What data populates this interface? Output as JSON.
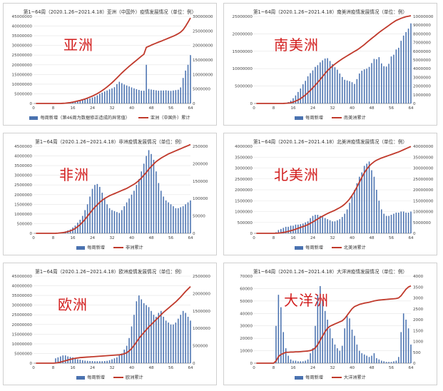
{
  "panels": [
    {
      "id": "asia",
      "name": "亚洲",
      "title": "第1~64周（2020.1.26~2021.4.18）亚洲（中国外）疫情发展情况（单位：例）",
      "legend_bar": "每周新增（第46周为数据修正造成的异常值）",
      "legend_line": "亚洲（中国外）累计"
    },
    {
      "id": "samerica",
      "name": "南美洲",
      "title": "第1~64周（2020.1.26~2021.4.18）南美洲疫情发展情况（单位：例）",
      "legend_bar": "每周新增",
      "legend_line": "南美洲累计"
    },
    {
      "id": "africa",
      "name": "非洲",
      "title": "第1~64周（2020.1.26~2021.4.18）非洲疫情发展情况（单位：例）",
      "legend_bar": "每周新增",
      "legend_line": "非洲累计"
    },
    {
      "id": "namerica",
      "name": "北美洲",
      "title": "第1~64周（2020.1.26~2021.4.18）北美洲疫情发展情况（单位：例）",
      "legend_bar": "每周新增",
      "legend_line": "北美洲累计"
    },
    {
      "id": "europe",
      "name": "欧洲",
      "title": "第1~64周（2020.1.26~2021.4.18）欧洲疫情发展情况（单位：例）",
      "legend_bar": "每周新增",
      "legend_line": "欧洲累计"
    },
    {
      "id": "oceania",
      "name": "大洋洲",
      "title": "第1~64周（2020.1.26~2021.4.18）大洋洲疫情发展情况（单位：例）",
      "legend_bar": "每周新增",
      "legend_line": "大洋洲累计"
    }
  ],
  "colors": {
    "bar": "#4a72b0",
    "line": "#c0392b"
  },
  "chart_data": [
    {
      "type": "bar",
      "id": "asia",
      "x_ticks": [
        0,
        8,
        16,
        24,
        32,
        40,
        48,
        56,
        64
      ],
      "y_left_ticks": [
        0,
        5000000,
        10000000,
        15000000,
        20000000,
        25000000,
        30000000,
        35000000,
        40000000,
        45000000
      ],
      "y_left_lim": [
        0,
        45000000
      ],
      "y_right_ticks": [
        "0",
        "5000000",
        "10000000",
        "15000000",
        "20000000",
        "25000000",
        "30000000"
      ],
      "y_right_lim": [
        0,
        30000000
      ],
      "bars": [
        0,
        0,
        0,
        0,
        0,
        0,
        0,
        0,
        50000,
        100000,
        200000,
        300000,
        400000,
        500000,
        700000,
        900000,
        1000000,
        1200000,
        1500000,
        1800000,
        2100000,
        2400000,
        2700000,
        3100000,
        3500000,
        4200000,
        5000000,
        5600000,
        6200000,
        6700000,
        7300000,
        7800000,
        8400000,
        10000000,
        11200000,
        10500000,
        9800000,
        9300000,
        8800000,
        8300000,
        7800000,
        7400000,
        7000000,
        6600000,
        6600000,
        20000000,
        7500000,
        7200000,
        7000000,
        6800000,
        6600000,
        6700000,
        6700000,
        6800000,
        6600000,
        6500000,
        6700000,
        6900000,
        7100000,
        8300000,
        13200000,
        17000000,
        20000000,
        25000000
      ],
      "line": [
        0,
        0,
        0,
        0,
        0,
        0,
        0,
        0,
        0,
        0,
        0,
        50000,
        100000,
        200000,
        300000,
        450000,
        650000,
        850000,
        1050000,
        1300000,
        1550000,
        1850000,
        2200000,
        2550000,
        2950000,
        3400000,
        3900000,
        4450000,
        5050000,
        5700000,
        6400000,
        7150000,
        7950000,
        8800000,
        9650000,
        10500000,
        11300000,
        12050000,
        12800000,
        13500000,
        14200000,
        14900000,
        15600000,
        16300000,
        16950000,
        19350000,
        19700000,
        20100000,
        20450000,
        20800000,
        21150000,
        21450000,
        21800000,
        22150000,
        22500000,
        22850000,
        23200000,
        23600000,
        24050000,
        24600000,
        25400000,
        26600000,
        28000000,
        29500000
      ]
    },
    {
      "type": "bar",
      "id": "samerica",
      "x_ticks": [
        0,
        8,
        16,
        24,
        32,
        40,
        48,
        56,
        64
      ],
      "y_left_ticks": [
        0,
        5000000,
        10000000,
        15000000,
        20000000,
        25000000
      ],
      "y_left_lim": [
        0,
        25000000
      ],
      "y_right_ticks": [
        "0",
        "1000000",
        "2000000",
        "3000000",
        "4000000",
        "5000000",
        "6000000",
        "7000000",
        "8000000",
        "9000000",
        "10000000"
      ],
      "y_right_lim": [
        0,
        10000000
      ],
      "bars": [
        0,
        0,
        0,
        0,
        0,
        0,
        0,
        0,
        0,
        0,
        0,
        100000,
        200000,
        400000,
        800000,
        1500000,
        2300000,
        3300000,
        4300000,
        5500000,
        6500000,
        7800000,
        8700000,
        9500000,
        10500000,
        11000000,
        11800000,
        12400000,
        12900000,
        13000000,
        12200000,
        11300000,
        10400000,
        9700000,
        8600000,
        7600000,
        6800000,
        6600000,
        6400000,
        6100000,
        5600000,
        7000000,
        8600000,
        9400000,
        9800000,
        10000000,
        10500000,
        11600000,
        12800000,
        12700000,
        13300000,
        11500000,
        10700000,
        10600000,
        11400000,
        13500000,
        14000000,
        15500000,
        16000000,
        18000000,
        19500000,
        20500000,
        21500000,
        23000000
      ],
      "line": [
        0,
        0,
        0,
        0,
        0,
        0,
        0,
        0,
        0,
        0,
        0,
        5000,
        20000,
        40000,
        80000,
        160000,
        270000,
        400000,
        560000,
        760000,
        980000,
        1240000,
        1500000,
        1800000,
        2100000,
        2420000,
        2750000,
        3100000,
        3450000,
        3770000,
        4040000,
        4290000,
        4520000,
        4730000,
        4930000,
        5120000,
        5300000,
        5470000,
        5640000,
        5810000,
        5980000,
        6140000,
        6330000,
        6540000,
        6760000,
        7000000,
        7240000,
        7470000,
        7690000,
        7920000,
        8150000,
        8360000,
        8560000,
        8760000,
        8960000,
        9170000,
        9360000,
        9540000,
        9660000,
        9780000,
        9880000,
        9970000,
        10020000,
        10080000
      ]
    },
    {
      "type": "bar",
      "id": "africa",
      "x_ticks": [
        0,
        8,
        16,
        24,
        32,
        40,
        48,
        56,
        64
      ],
      "y_left_ticks": [
        0,
        500000,
        1000000,
        1500000,
        2000000,
        2500000,
        3000000,
        3500000,
        4000000,
        4500000
      ],
      "y_left_lim": [
        0,
        4500000
      ],
      "y_right_ticks": [
        "0",
        "50000",
        "100000",
        "150000",
        "200000",
        "250000"
      ],
      "y_right_lim": [
        0,
        250000
      ],
      "bars": [
        0,
        0,
        0,
        0,
        0,
        0,
        0,
        0,
        5000,
        20000,
        40000,
        60000,
        100000,
        150000,
        200000,
        300000,
        400000,
        550000,
        700000,
        900000,
        1200000,
        1500000,
        1900000,
        2300000,
        2500000,
        2550000,
        2400000,
        2100000,
        1800000,
        1500000,
        1300000,
        1200000,
        1150000,
        1100000,
        1050000,
        1200000,
        1400000,
        1600000,
        1800000,
        2000000,
        2200000,
        2500000,
        2800000,
        3200000,
        3600000,
        4000000,
        4300000,
        4100000,
        3800000,
        3200000,
        2600000,
        2200000,
        1900000,
        1700000,
        1600000,
        1500000,
        1400000,
        1300000,
        1300000,
        1350000,
        1400000,
        1500000,
        1600000,
        1700000
      ],
      "line": [
        0,
        0,
        0,
        0,
        0,
        0,
        0,
        0,
        100,
        500,
        1200,
        2000,
        3000,
        5000,
        7000,
        10000,
        14000,
        19000,
        25000,
        32000,
        40000,
        49000,
        58000,
        67000,
        75000,
        82000,
        89000,
        95000,
        100000,
        104000,
        108000,
        111000,
        114000,
        117000,
        120000,
        123000,
        126000,
        129000,
        133000,
        137000,
        141000,
        146000,
        152000,
        159000,
        167000,
        175000,
        184000,
        192000,
        199000,
        206000,
        211000,
        216000,
        220000,
        224000,
        228000,
        231000,
        234000,
        237000,
        240000,
        243000,
        246000,
        249000,
        252000,
        255000
      ]
    },
    {
      "type": "bar",
      "id": "namerica",
      "x_ticks": [
        0,
        8,
        16,
        24,
        32,
        40,
        48,
        56,
        64
      ],
      "y_left_ticks": [
        0,
        500000,
        1000000,
        1500000,
        2000000,
        2500000,
        3000000,
        3500000,
        4000000
      ],
      "y_left_lim": [
        0,
        4000000
      ],
      "y_right_ticks": [
        "0",
        "5000000",
        "10000000",
        "15000000",
        "20000000",
        "25000000",
        "30000000",
        "35000000",
        "40000000"
      ],
      "y_right_lim": [
        0,
        40000000
      ],
      "bars": [
        0,
        0,
        0,
        0,
        0,
        0,
        0,
        0,
        50000,
        150000,
        200000,
        250000,
        300000,
        300000,
        350000,
        350000,
        400000,
        400000,
        420000,
        450000,
        500000,
        550000,
        700000,
        800000,
        850000,
        850000,
        800000,
        750000,
        700000,
        650000,
        600000,
        550000,
        550000,
        600000,
        650000,
        750000,
        900000,
        1100000,
        1400000,
        1700000,
        2000000,
        2300000,
        2600000,
        2800000,
        3100000,
        3200000,
        3300000,
        2900000,
        2600000,
        2000000,
        1500000,
        1100000,
        900000,
        800000,
        800000,
        850000,
        900000,
        950000,
        950000,
        1000000,
        1000000,
        950000,
        950000,
        1000000
      ],
      "line": [
        0,
        0,
        0,
        0,
        0,
        0,
        0,
        0,
        50000,
        100000,
        200000,
        400000,
        600000,
        900000,
        1200000,
        1500000,
        1900000,
        2300000,
        2700000,
        3100000,
        3500000,
        4000000,
        4600000,
        5200000,
        5900000,
        6600000,
        7300000,
        7900000,
        8500000,
        9100000,
        9600000,
        10100000,
        10600000,
        11200000,
        11800000,
        12500000,
        13400000,
        14500000,
        15800000,
        17400000,
        19200000,
        21300000,
        23500000,
        25700000,
        27800000,
        29500000,
        30900000,
        32000000,
        32900000,
        33600000,
        34100000,
        34600000,
        35000000,
        35400000,
        35800000,
        36200000,
        36600000,
        37000000,
        37400000,
        37900000,
        38400000,
        38900000,
        39400000,
        39900000
      ]
    },
    {
      "type": "bar",
      "id": "europe",
      "x_ticks": [
        0,
        8,
        16,
        24,
        32,
        40,
        48,
        56,
        64
      ],
      "y_left_ticks": [
        0,
        5000000,
        10000000,
        15000000,
        20000000,
        25000000,
        30000000,
        35000000,
        40000000,
        45000000
      ],
      "y_left_lim": [
        0,
        45000000
      ],
      "y_right_ticks": [
        "0",
        "500000",
        "1000000",
        "1500000",
        "2000000",
        "2500000"
      ],
      "y_right_lim": [
        0,
        2500000
      ],
      "bars": [
        0,
        0,
        0,
        0,
        0,
        0,
        0,
        0,
        2500000,
        3000000,
        3500000,
        4000000,
        4000000,
        3500000,
        3200000,
        3000000,
        2500000,
        2000000,
        1800000,
        1500000,
        1300000,
        1200000,
        1100000,
        1100000,
        1000000,
        1000000,
        1000000,
        1000000,
        1100000,
        1200000,
        1500000,
        2000000,
        2500000,
        3000000,
        4000000,
        5000000,
        7000000,
        9000000,
        13000000,
        19000000,
        25000000,
        32000000,
        35000000,
        33000000,
        31000000,
        30000000,
        29000000,
        27000000,
        25000000,
        24000000,
        26000000,
        27000000,
        24000000,
        22000000,
        21000000,
        20000000,
        20000000,
        21000000,
        23000000,
        25000000,
        27000000,
        26000000,
        24000000,
        22000000
      ],
      "line": [
        0,
        0,
        0,
        0,
        0,
        0,
        0,
        0,
        5000,
        15000,
        30000,
        50000,
        70000,
        90000,
        110000,
        125000,
        140000,
        150000,
        160000,
        165000,
        170000,
        175000,
        180000,
        185000,
        190000,
        195000,
        200000,
        205000,
        210000,
        215000,
        220000,
        225000,
        230000,
        235000,
        240000,
        250000,
        270000,
        300000,
        350000,
        420000,
        510000,
        610000,
        710000,
        800000,
        880000,
        960000,
        1040000,
        1110000,
        1180000,
        1250000,
        1320000,
        1390000,
        1460000,
        1520000,
        1580000,
        1640000,
        1700000,
        1760000,
        1830000,
        1900000,
        1980000,
        2060000,
        2130000,
        2200000
      ]
    },
    {
      "type": "bar",
      "id": "oceania",
      "x_ticks": [
        0,
        8,
        16,
        24,
        32,
        40,
        48,
        56,
        64
      ],
      "y_left_ticks": [
        0,
        10000,
        20000,
        30000,
        40000,
        50000,
        60000,
        70000
      ],
      "y_left_lim": [
        0,
        70000
      ],
      "y_right_ticks": [
        "0",
        "500",
        "1000",
        "1500",
        "2000",
        "2500",
        "3000",
        "3500",
        "4000"
      ],
      "y_right_lim": [
        0,
        4000
      ],
      "bars": [
        0,
        0,
        0,
        0,
        0,
        0,
        0,
        0,
        30000,
        55000,
        45000,
        25000,
        12000,
        6000,
        3000,
        2000,
        2000,
        1500,
        1500,
        1500,
        2000,
        3000,
        8000,
        12000,
        30000,
        55000,
        62000,
        50000,
        42000,
        35000,
        28000,
        20000,
        15000,
        12000,
        10000,
        14000,
        28000,
        38000,
        36000,
        27000,
        22000,
        15000,
        10000,
        8000,
        7000,
        6000,
        5000,
        6000,
        8000,
        4000,
        3000,
        2000,
        1500,
        1000,
        1000,
        1000,
        1500,
        2000,
        5000,
        25000,
        40000,
        35000,
        28000,
        15000
      ],
      "line": [
        0,
        0,
        0,
        0,
        0,
        0,
        0,
        0,
        100,
        300,
        400,
        450,
        500,
        500,
        510,
        510,
        520,
        520,
        530,
        540,
        550,
        560,
        580,
        620,
        700,
        850,
        1050,
        1250,
        1450,
        1600,
        1700,
        1750,
        1800,
        1850,
        1900,
        1950,
        2050,
        2200,
        2350,
        2500,
        2600,
        2650,
        2700,
        2730,
        2760,
        2780,
        2800,
        2830,
        2860,
        2880,
        2900,
        2910,
        2920,
        2930,
        2940,
        2950,
        2960,
        2970,
        3000,
        3100,
        3250,
        3400,
        3500,
        3550
      ]
    }
  ]
}
